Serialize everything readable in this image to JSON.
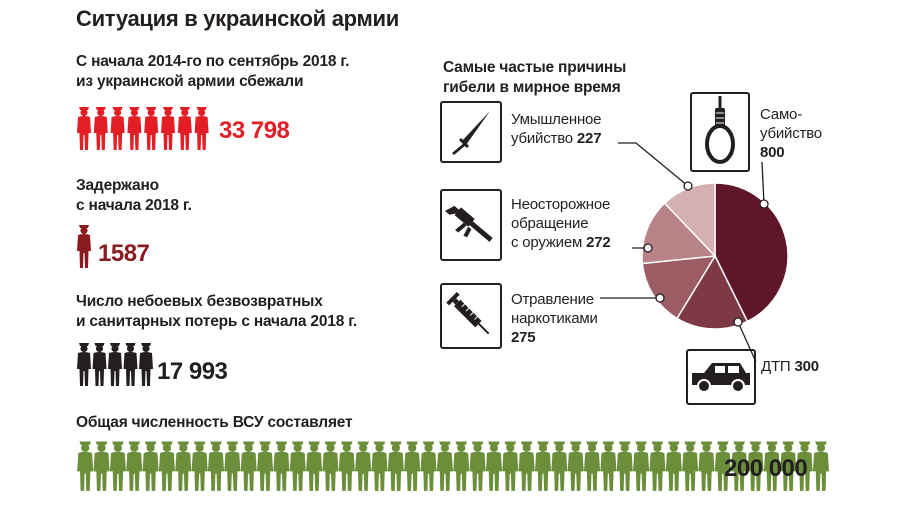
{
  "title": "Ситуация в украинской армии",
  "desertion": {
    "heading_line1": "С начала 2014-го по сентябрь 2018 г.",
    "heading_line2": "из украинской армии сбежали",
    "value": "33 798",
    "color": "#e31e24",
    "figures": 8
  },
  "detained": {
    "heading_line1": "Задержано",
    "heading_line2": "с начала 2018 г.",
    "value": "1587",
    "color": "#8a1c20",
    "figures": 1
  },
  "losses": {
    "heading_line1": "Число небоевых безвозвратных",
    "heading_line2": "и санитарных потерь с начала 2018 г.",
    "value": "17 993",
    "color": "#231f20",
    "figures": 5
  },
  "total": {
    "heading": "Общая численность ВСУ составляет",
    "value": "200 000",
    "color": "#6b8e3a",
    "figures": 46
  },
  "causes": {
    "heading_line1": "Самые частые причины",
    "heading_line2": "гибели в мирное время",
    "items": [
      {
        "label_line1": "Умышленное",
        "label_line2": "убийство",
        "value": "227",
        "icon": "knife-icon"
      },
      {
        "label_line1": "Неосторожное",
        "label_line2": "обращение",
        "label_line3": "с оружием",
        "value": "272",
        "icon": "rifle-icon"
      },
      {
        "label_line1": "Отравление",
        "label_line2": "наркотиками",
        "value": "275",
        "icon": "syringe-icon"
      },
      {
        "label_line1": "Само-",
        "label_line2": "убийство",
        "value": "800",
        "icon": "noose-icon"
      },
      {
        "label_line1": "ДТП",
        "value": "300",
        "icon": "car-icon"
      }
    ]
  },
  "chart_data": {
    "type": "pie",
    "title": "Самые частые причины гибели в мирное время",
    "categories": [
      "Самоубийство",
      "ДТП",
      "Отравление наркотиками",
      "Неосторожное обращение с оружием",
      "Умышленное убийство"
    ],
    "values": [
      800,
      300,
      275,
      272,
      227
    ],
    "colors": [
      "#5e1628",
      "#7d3a44",
      "#9c5c64",
      "#b98286",
      "#d6b0b1"
    ]
  }
}
